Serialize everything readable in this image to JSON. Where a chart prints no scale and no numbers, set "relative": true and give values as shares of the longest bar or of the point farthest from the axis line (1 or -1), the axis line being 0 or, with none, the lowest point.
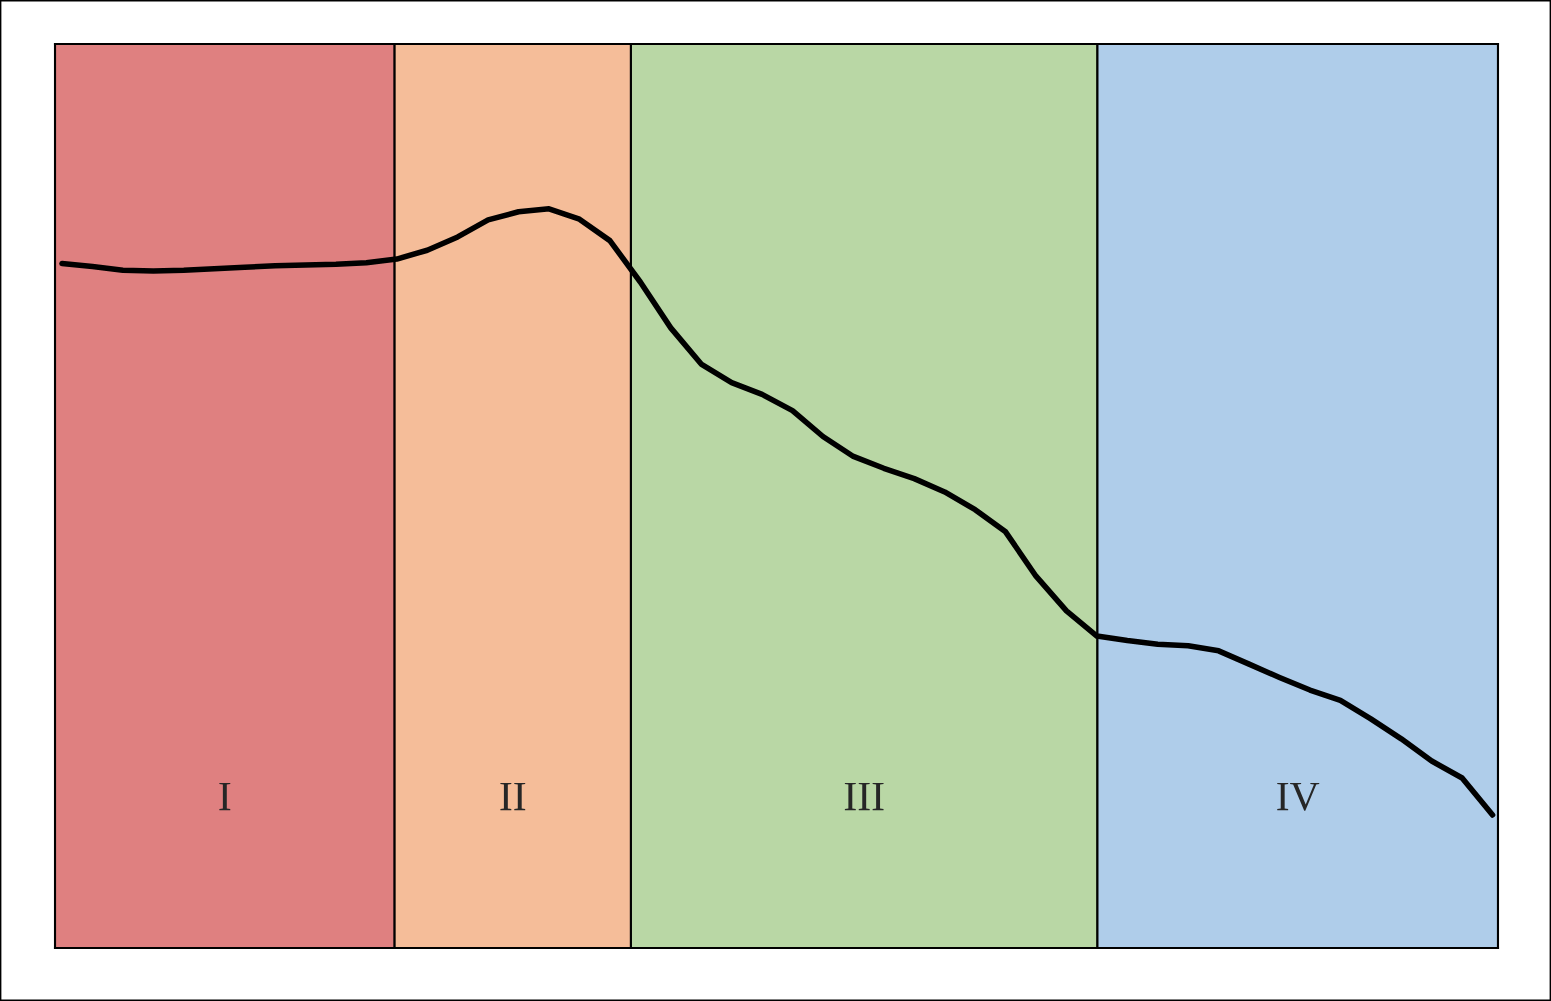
{
  "chart_data": {
    "type": "line",
    "relative": true,
    "marker": "none",
    "line_style": "solid",
    "categories": [
      null,
      null,
      null,
      null,
      null,
      null,
      null,
      null,
      null,
      null,
      null,
      null,
      null,
      null,
      null,
      null,
      null,
      null,
      null,
      null,
      null,
      null,
      null,
      null,
      null,
      null,
      null,
      null,
      null,
      null,
      null,
      null,
      null,
      null,
      null,
      null,
      null,
      null,
      null,
      null,
      null,
      null,
      null,
      null,
      null,
      null,
      null,
      null
    ],
    "series": [
      {
        "color": "#000000",
        "values": [
          0.926,
          0.922,
          0.917,
          0.916,
          0.917,
          0.919,
          0.921,
          0.923,
          0.924,
          0.925,
          0.927,
          0.932,
          0.944,
          0.962,
          0.985,
          0.996,
          1.0,
          0.986,
          0.957,
          0.901,
          0.839,
          0.79,
          0.765,
          0.749,
          0.727,
          0.692,
          0.665,
          0.649,
          0.635,
          0.617,
          0.593,
          0.563,
          0.503,
          0.456,
          0.422,
          0.416,
          0.411,
          0.409,
          0.402,
          0.384,
          0.366,
          0.349,
          0.335,
          0.31,
          0.283,
          0.253,
          0.23,
          0.18
        ]
      }
    ],
    "annotations": [
      "I",
      "II",
      "III",
      "IV"
    ]
  }
}
